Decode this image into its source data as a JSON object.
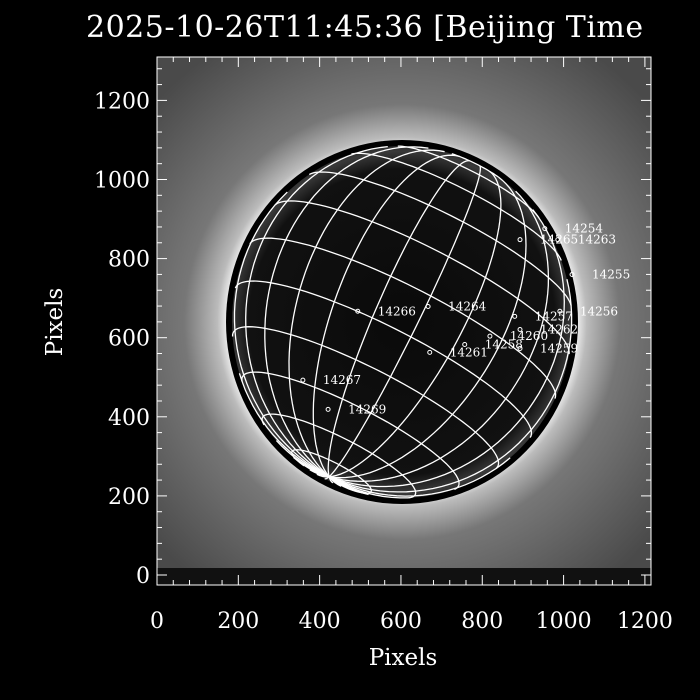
{
  "chart_data": {
    "type": "heatmap",
    "title": "2025-10-26T11:45:36 [Beijing Time",
    "xlabel": "Pixels",
    "ylabel": "Pixels",
    "xlim": [
      0,
      1215
    ],
    "ylim": [
      0,
      1335
    ],
    "xticks": [
      0,
      200,
      400,
      600,
      800,
      1000,
      1200
    ],
    "yticks": [
      0,
      200,
      400,
      600,
      800,
      1000,
      1200
    ],
    "disk": {
      "center": [
        603,
        640
      ],
      "radius": 425
    },
    "grid": "heliographic latitude/longitude",
    "colors": {
      "background": "#000000",
      "grid": "#ffffff",
      "text": "#ffffff"
    },
    "annotations": [
      {
        "text": "14254",
        "x": 1003,
        "y": 891
      },
      {
        "text": "14265",
        "x": 942,
        "y": 863
      },
      {
        "text": "14263",
        "x": 1035,
        "y": 863
      },
      {
        "text": "14255",
        "x": 1070,
        "y": 775
      },
      {
        "text": "14256",
        "x": 1040,
        "y": 682
      },
      {
        "text": "14257",
        "x": 929,
        "y": 669
      },
      {
        "text": "14262",
        "x": 942,
        "y": 636
      },
      {
        "text": "14260",
        "x": 868,
        "y": 619
      },
      {
        "text": "14258",
        "x": 806,
        "y": 598
      },
      {
        "text": "14259",
        "x": 942,
        "y": 588
      },
      {
        "text": "14266",
        "x": 543,
        "y": 682
      },
      {
        "text": "14264",
        "x": 716,
        "y": 694
      },
      {
        "text": "14261",
        "x": 720,
        "y": 578
      },
      {
        "text": "14267",
        "x": 408,
        "y": 508
      },
      {
        "text": "14269",
        "x": 470,
        "y": 434
      }
    ]
  }
}
